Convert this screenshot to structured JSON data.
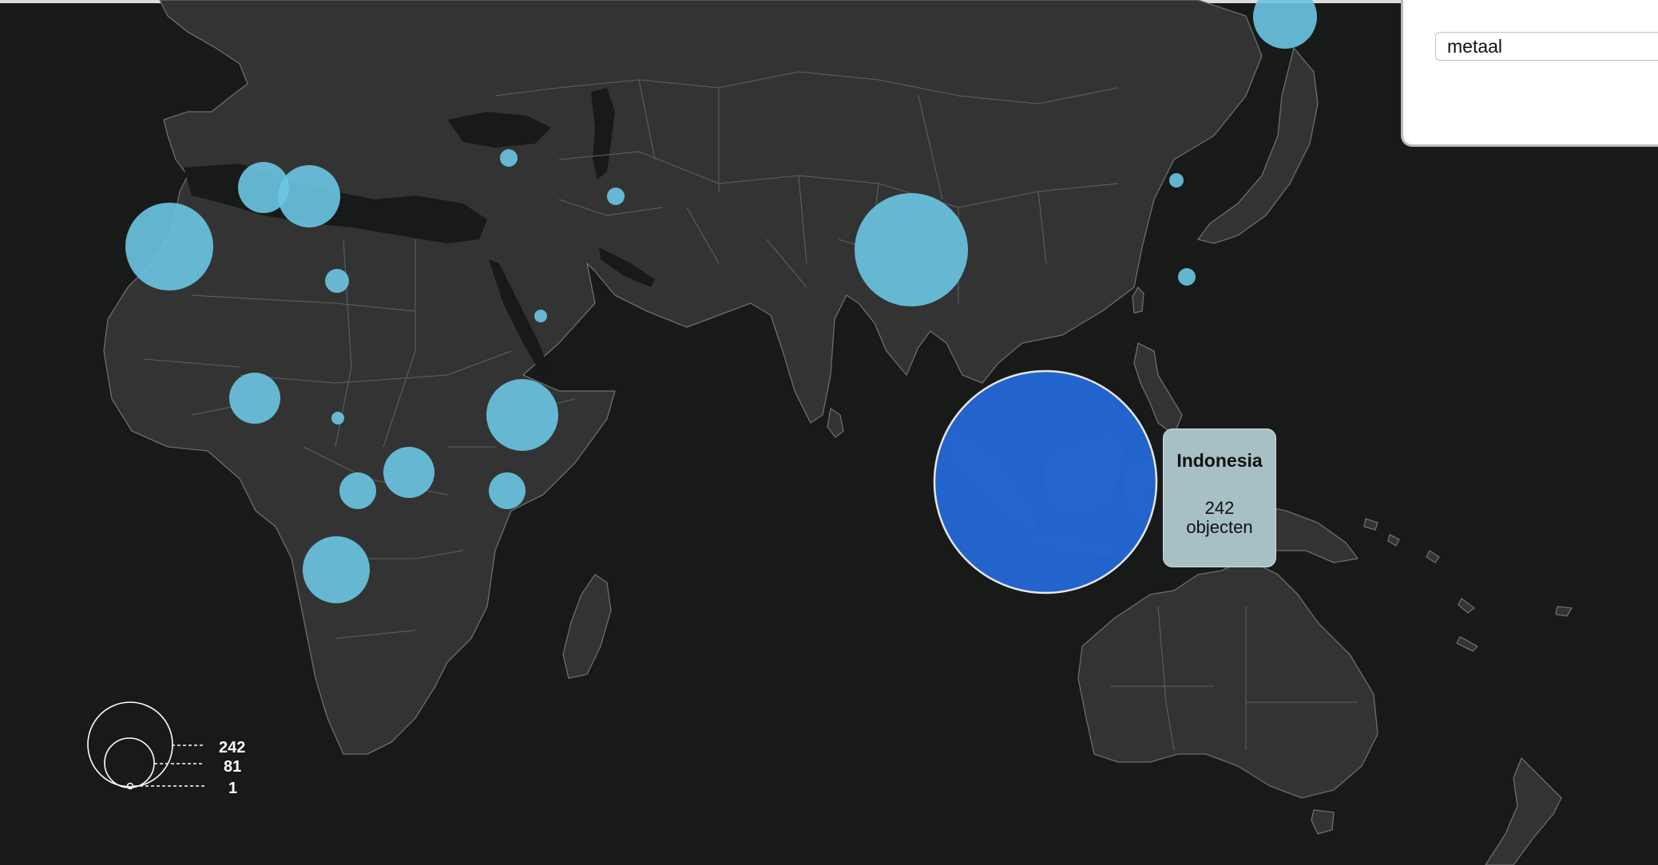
{
  "filter": {
    "value": "metaal"
  },
  "tooltip": {
    "country": "Indonesia",
    "count": "242",
    "unit": "objecten"
  },
  "legend": {
    "max": "242",
    "mid": "81",
    "min": "1"
  },
  "colors": {
    "bubble": "#6cc6e3",
    "bubble_active": "#2468d6",
    "land": "#333333",
    "sea": "#181919"
  }
}
